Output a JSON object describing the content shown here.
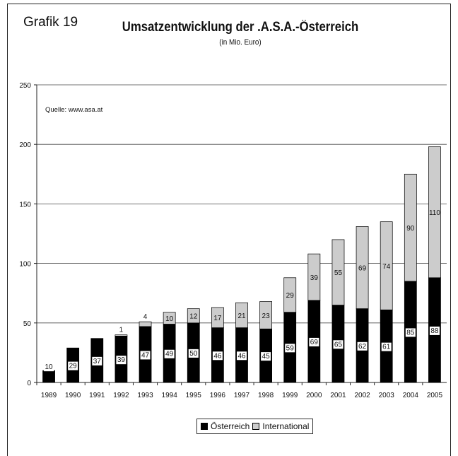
{
  "figure": {
    "label": "Grafik 19",
    "title": "Umsatzentwicklung der .A.S.A.-Österreich",
    "subtitle": "(in Mio. Euro)",
    "source": "Quelle: www.asa.at"
  },
  "chart_data": {
    "type": "bar",
    "stacked": true,
    "categories": [
      "1989",
      "1990",
      "1991",
      "1992",
      "1993",
      "1994",
      "1995",
      "1996",
      "1997",
      "1998",
      "1999",
      "2000",
      "2001",
      "2002",
      "2003",
      "2004",
      "2005"
    ],
    "series": [
      {
        "name": "Österreich",
        "color": "#000000",
        "values": [
          10,
          29,
          37,
          39,
          47,
          49,
          50,
          46,
          46,
          45,
          59,
          69,
          65,
          62,
          61,
          85,
          88
        ]
      },
      {
        "name": "International",
        "color": "#cccccc",
        "values": [
          0,
          0,
          0,
          1,
          4,
          10,
          12,
          17,
          21,
          23,
          29,
          39,
          55,
          69,
          74,
          90,
          110
        ]
      }
    ],
    "ylim": [
      0,
      250
    ],
    "yticks": [
      0,
      50,
      100,
      150,
      200,
      250
    ],
    "grid": true,
    "legend_position": "bottom"
  }
}
